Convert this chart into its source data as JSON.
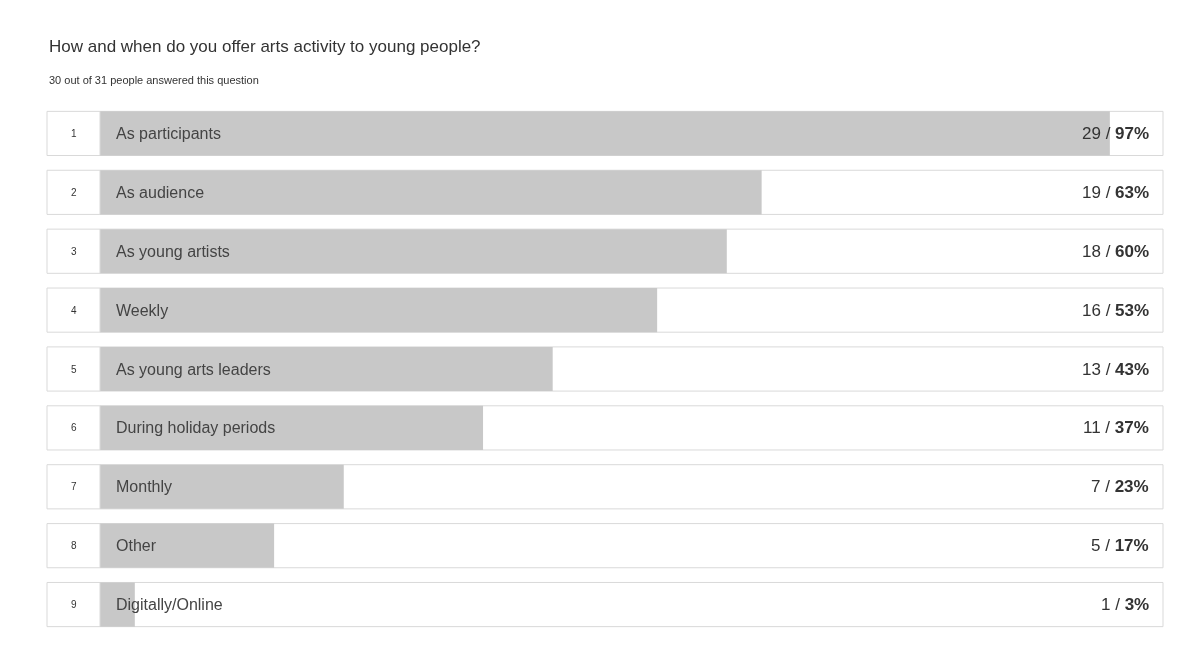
{
  "chart_data": {
    "type": "bar",
    "orientation": "horizontal",
    "title": "How and when do you offer arts activity to young people?",
    "subtitle": "30 out of 31 people answered this question",
    "categories": [
      "As participants",
      "As audience",
      "As young artists",
      "Weekly",
      "As young arts leaders",
      "During holiday periods",
      "Monthly",
      "Other",
      "Digitally/Online"
    ],
    "values": [
      29,
      19,
      18,
      16,
      13,
      11,
      7,
      5,
      1
    ],
    "value_labels": [
      "29 / 97%",
      "19 / 63%",
      "18 / 60%",
      "16 / 53%",
      "13 / 43%",
      "11 / 37%",
      "7 / 23%",
      "5 / 17%",
      "1 / 3%"
    ],
    "color": "#c8c8c8",
    "tick_labels": false,
    "grid": false,
    "annotations": [
      "1",
      "2",
      "3",
      "4",
      "5",
      "6",
      "7",
      "8",
      "9"
    ]
  }
}
